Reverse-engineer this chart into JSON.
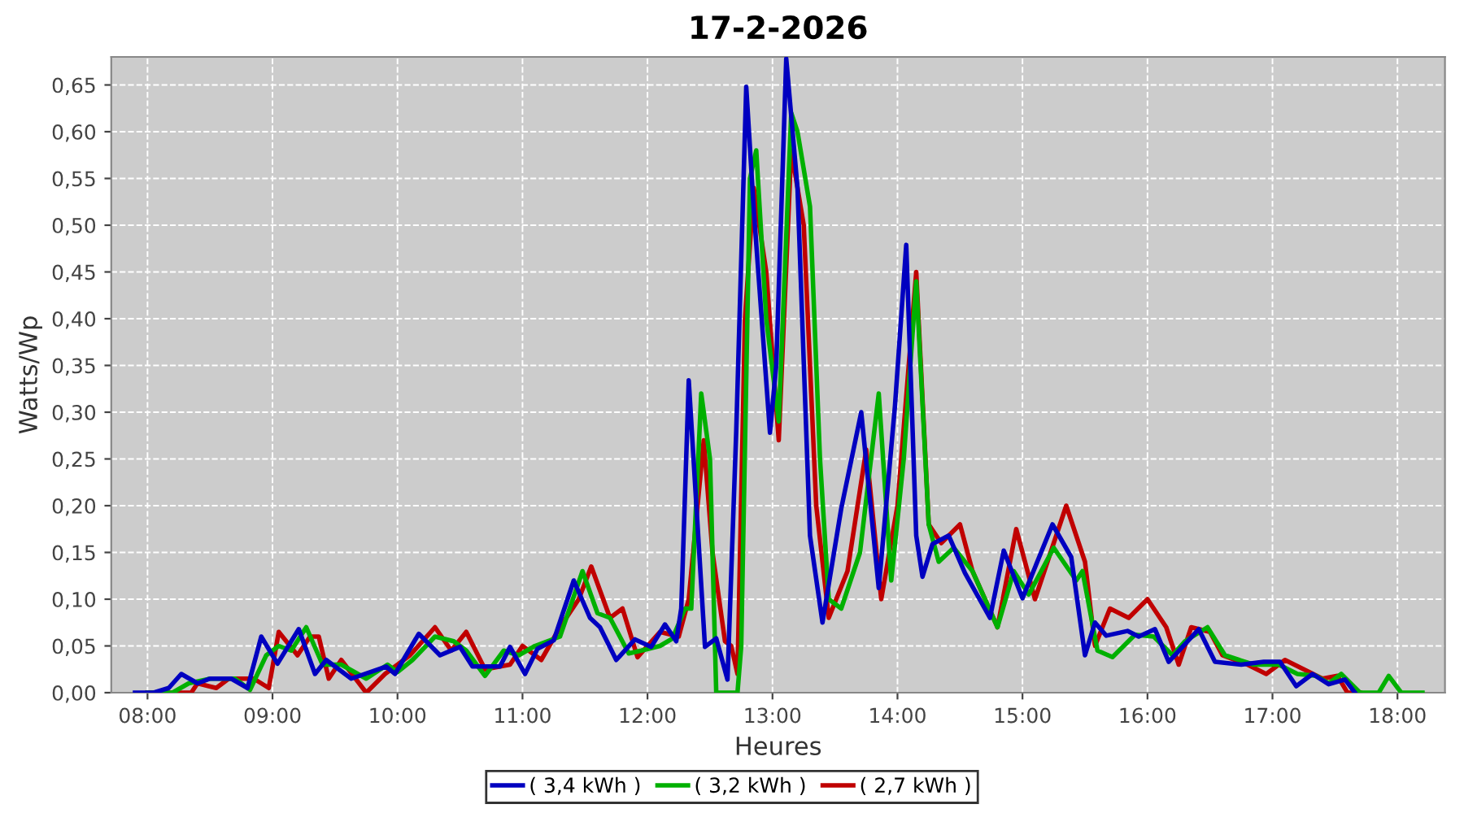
{
  "chart_data": {
    "type": "line",
    "title": "17-2-2026",
    "xlabel": "Heures",
    "ylabel": "Watts/Wp",
    "xlim": [
      7.71,
      18.38
    ],
    "xticks": [
      {
        "value": 8,
        "label": "08:00"
      },
      {
        "value": 9,
        "label": "09:00"
      },
      {
        "value": 10,
        "label": "10:00"
      },
      {
        "value": 11,
        "label": "11:00"
      },
      {
        "value": 12,
        "label": "12:00"
      },
      {
        "value": 13,
        "label": "13:00"
      },
      {
        "value": 14,
        "label": "14:00"
      },
      {
        "value": 15,
        "label": "15:00"
      },
      {
        "value": 16,
        "label": "16:00"
      },
      {
        "value": 17,
        "label": "17:00"
      },
      {
        "value": 18,
        "label": "18:00"
      }
    ],
    "ylim": [
      0,
      0.68
    ],
    "yticks": [
      {
        "value": 0,
        "label": "0,00"
      },
      {
        "value": 0.05,
        "label": "0,05"
      },
      {
        "value": 0.1,
        "label": "0,10"
      },
      {
        "value": 0.15,
        "label": "0,15"
      },
      {
        "value": 0.2,
        "label": "0,20"
      },
      {
        "value": 0.25,
        "label": "0,25"
      },
      {
        "value": 0.3,
        "label": "0,30"
      },
      {
        "value": 0.35,
        "label": "0,35"
      },
      {
        "value": 0.4,
        "label": "0,40"
      },
      {
        "value": 0.45,
        "label": "0,45"
      },
      {
        "value": 0.5,
        "label": "0,50"
      },
      {
        "value": 0.55,
        "label": "0,55"
      },
      {
        "value": 0.6,
        "label": "0,60"
      },
      {
        "value": 0.65,
        "label": "0,65"
      }
    ],
    "grid": true,
    "legend": "bottom",
    "line_style": "solid",
    "series": [
      {
        "name": "( 3,4 kWh )",
        "color": "#0000c0",
        "x": [
          7.9,
          8.05,
          8.17,
          8.27,
          8.4,
          8.5,
          8.67,
          8.8,
          8.91,
          9.04,
          9.21,
          9.34,
          9.43,
          9.63,
          9.91,
          9.98,
          10.17,
          10.34,
          10.5,
          10.6,
          10.82,
          10.9,
          11.02,
          11.12,
          11.25,
          11.41,
          11.54,
          11.62,
          11.75,
          11.9,
          12.03,
          12.14,
          12.23,
          12.27,
          12.33,
          12.46,
          12.55,
          12.64,
          12.71,
          12.79,
          12.85,
          12.98,
          13.03,
          13.11,
          13.2,
          13.3,
          13.4,
          13.55,
          13.71,
          13.85,
          13.98,
          14.07,
          14.15,
          14.2,
          14.28,
          14.41,
          14.54,
          14.74,
          14.85,
          15.0,
          15.24,
          15.39,
          15.5,
          15.58,
          15.67,
          15.84,
          15.93,
          16.06,
          16.17,
          16.41,
          16.54,
          16.75,
          16.93,
          17.06,
          17.19,
          17.32,
          17.45,
          17.58,
          17.66
        ],
        "values": [
          0,
          0,
          0.005,
          0.02,
          0.01,
          0.015,
          0.015,
          0.005,
          0.06,
          0.031,
          0.068,
          0.02,
          0.035,
          0.015,
          0.028,
          0.02,
          0.063,
          0.04,
          0.049,
          0.028,
          0.028,
          0.049,
          0.02,
          0.047,
          0.056,
          0.12,
          0.08,
          0.07,
          0.035,
          0.057,
          0.049,
          0.073,
          0.055,
          0.09,
          0.334,
          0.049,
          0.058,
          0.014,
          0.28,
          0.648,
          0.517,
          0.278,
          0.35,
          0.678,
          0.54,
          0.168,
          0.075,
          0.197,
          0.3,
          0.112,
          0.307,
          0.479,
          0.168,
          0.124,
          0.159,
          0.168,
          0.128,
          0.08,
          0.152,
          0.101,
          0.18,
          0.145,
          0.04,
          0.075,
          0.061,
          0.066,
          0.06,
          0.068,
          0.033,
          0.068,
          0.033,
          0.03,
          0.033,
          0.033,
          0.007,
          0.02,
          0.009,
          0.014,
          0
        ]
      },
      {
        "name": "( 3,2 kWh )",
        "color": "#00b000",
        "x": [
          8.0,
          8.2,
          8.33,
          8.5,
          8.7,
          8.82,
          8.95,
          9.05,
          9.15,
          9.27,
          9.4,
          9.55,
          9.75,
          9.92,
          10.0,
          10.12,
          10.3,
          10.45,
          10.55,
          10.7,
          10.85,
          10.97,
          11.1,
          11.3,
          11.48,
          11.6,
          11.7,
          11.85,
          11.95,
          12.1,
          12.2,
          12.3,
          12.35,
          12.43,
          12.5,
          12.55,
          12.72,
          12.75,
          12.82,
          12.87,
          12.95,
          13.05,
          13.15,
          13.2,
          13.3,
          13.38,
          13.45,
          13.55,
          13.7,
          13.85,
          13.95,
          14.05,
          14.15,
          14.25,
          14.33,
          14.45,
          14.6,
          14.8,
          14.93,
          15.05,
          15.25,
          15.43,
          15.48,
          15.6,
          15.72,
          15.9,
          16.05,
          16.2,
          16.3,
          16.48,
          16.62,
          16.85,
          17.05,
          17.2,
          17.35,
          17.45,
          17.55,
          17.7,
          17.85,
          17.93,
          18.03,
          18.2
        ],
        "values": [
          0,
          0,
          0.01,
          0.015,
          0.015,
          0.003,
          0.04,
          0.05,
          0.045,
          0.07,
          0.03,
          0.03,
          0.015,
          0.03,
          0.022,
          0.035,
          0.06,
          0.055,
          0.045,
          0.018,
          0.045,
          0.04,
          0.05,
          0.06,
          0.13,
          0.085,
          0.08,
          0.042,
          0.045,
          0.05,
          0.058,
          0.09,
          0.09,
          0.32,
          0.25,
          0,
          0,
          0.05,
          0.55,
          0.58,
          0.4,
          0.29,
          0.62,
          0.6,
          0.52,
          0.25,
          0.1,
          0.09,
          0.15,
          0.32,
          0.12,
          0.25,
          0.44,
          0.18,
          0.14,
          0.155,
          0.13,
          0.07,
          0.13,
          0.105,
          0.155,
          0.12,
          0.13,
          0.045,
          0.038,
          0.062,
          0.06,
          0.04,
          0.055,
          0.07,
          0.04,
          0.03,
          0.03,
          0.02,
          0.018,
          0.01,
          0.02,
          0,
          0,
          0.018,
          0,
          0
        ]
      },
      {
        "name": "( 2,7 kWh )",
        "color": "#c00000",
        "x": [
          8.0,
          8.35,
          8.4,
          8.55,
          8.65,
          8.85,
          8.97,
          9.05,
          9.2,
          9.3,
          9.37,
          9.45,
          9.55,
          9.75,
          9.9,
          10.1,
          10.3,
          10.43,
          10.55,
          10.7,
          10.9,
          11.0,
          11.15,
          11.3,
          11.45,
          11.55,
          11.7,
          11.8,
          11.92,
          12.0,
          12.1,
          12.25,
          12.33,
          12.45,
          12.52,
          12.62,
          12.67,
          12.72,
          12.78,
          12.85,
          12.95,
          13.05,
          13.15,
          13.25,
          13.35,
          13.45,
          13.6,
          13.75,
          13.87,
          14.0,
          14.15,
          14.25,
          14.35,
          14.5,
          14.6,
          14.8,
          14.95,
          15.1,
          15.35,
          15.5,
          15.58,
          15.7,
          15.85,
          16.0,
          16.15,
          16.25,
          16.35,
          16.5,
          16.6,
          16.8,
          16.95,
          17.1,
          17.25,
          17.4,
          17.52,
          17.6,
          17.7
        ],
        "values": [
          0,
          0,
          0.01,
          0.005,
          0.015,
          0.015,
          0.005,
          0.065,
          0.04,
          0.06,
          0.06,
          0.015,
          0.035,
          0,
          0.02,
          0.04,
          0.07,
          0.045,
          0.065,
          0.025,
          0.03,
          0.05,
          0.035,
          0.07,
          0.1,
          0.135,
          0.08,
          0.09,
          0.038,
          0.05,
          0.065,
          0.06,
          0.1,
          0.27,
          0.15,
          0.055,
          0.05,
          0.02,
          0.4,
          0.54,
          0.45,
          0.27,
          0.58,
          0.5,
          0.2,
          0.08,
          0.13,
          0.26,
          0.1,
          0.2,
          0.45,
          0.18,
          0.16,
          0.18,
          0.13,
          0.07,
          0.175,
          0.1,
          0.2,
          0.14,
          0.05,
          0.09,
          0.08,
          0.1,
          0.07,
          0.03,
          0.07,
          0.065,
          0.04,
          0.03,
          0.02,
          0.035,
          0.025,
          0.015,
          0.018,
          0,
          0
        ]
      }
    ]
  }
}
